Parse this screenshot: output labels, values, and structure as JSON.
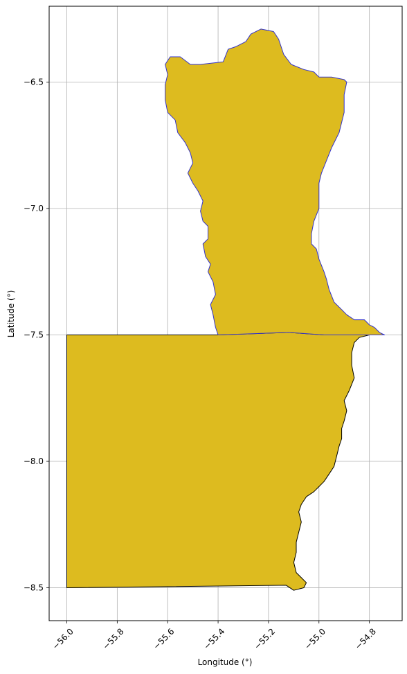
{
  "chart_data": {
    "type": "map",
    "xlabel": "Longitude (°)",
    "ylabel": "Latitude (°)",
    "xlim": [
      -56.07,
      -54.67
    ],
    "ylim": [
      -8.63,
      -6.2
    ],
    "x_ticks": [
      -56.0,
      -55.8,
      -55.6,
      -55.4,
      -55.2,
      -55.0,
      -54.8
    ],
    "x_tick_labels": [
      "−56.0",
      "−55.8",
      "−55.6",
      "−55.4",
      "−55.2",
      "−55.0",
      "−54.8"
    ],
    "y_ticks": [
      -6.5,
      -7.0,
      -7.5,
      -8.0,
      -8.5
    ],
    "y_tick_labels": [
      "−6.5",
      "−7.0",
      "−7.5",
      "−8.0",
      "−8.5"
    ],
    "grid": true,
    "fill_color": "#DDBB1F",
    "regions": [
      {
        "edge_color": "#3333cc",
        "coords": [
          [
            -55.27,
            -6.31
          ],
          [
            -55.23,
            -6.29
          ],
          [
            -55.18,
            -6.3
          ],
          [
            -55.16,
            -6.33
          ],
          [
            -55.14,
            -6.39
          ],
          [
            -55.11,
            -6.43
          ],
          [
            -55.06,
            -6.45
          ],
          [
            -55.02,
            -6.46
          ],
          [
            -55.0,
            -6.48
          ],
          [
            -54.95,
            -6.48
          ],
          [
            -54.9,
            -6.49
          ],
          [
            -54.89,
            -6.5
          ],
          [
            -54.9,
            -6.55
          ],
          [
            -54.9,
            -6.62
          ],
          [
            -54.92,
            -6.7
          ],
          [
            -54.95,
            -6.76
          ],
          [
            -54.97,
            -6.81
          ],
          [
            -54.99,
            -6.86
          ],
          [
            -55.0,
            -6.9
          ],
          [
            -55.0,
            -6.95
          ],
          [
            -55.0,
            -7.0
          ],
          [
            -55.02,
            -7.05
          ],
          [
            -55.03,
            -7.1
          ],
          [
            -55.03,
            -7.14
          ],
          [
            -55.01,
            -7.16
          ],
          [
            -55.0,
            -7.2
          ],
          [
            -54.98,
            -7.25
          ],
          [
            -54.97,
            -7.28
          ],
          [
            -54.96,
            -7.32
          ],
          [
            -54.94,
            -7.37
          ],
          [
            -54.91,
            -7.4
          ],
          [
            -54.89,
            -7.42
          ],
          [
            -54.86,
            -7.44
          ],
          [
            -54.82,
            -7.44
          ],
          [
            -54.8,
            -7.46
          ],
          [
            -54.78,
            -7.47
          ],
          [
            -54.76,
            -7.49
          ],
          [
            -54.74,
            -7.5
          ],
          [
            -54.8,
            -7.5
          ],
          [
            -54.98,
            -7.5
          ],
          [
            -55.12,
            -7.49
          ],
          [
            -55.4,
            -7.5
          ],
          [
            -55.41,
            -7.47
          ],
          [
            -55.42,
            -7.42
          ],
          [
            -55.43,
            -7.38
          ],
          [
            -55.41,
            -7.34
          ],
          [
            -55.42,
            -7.29
          ],
          [
            -55.44,
            -7.25
          ],
          [
            -55.43,
            -7.22
          ],
          [
            -55.45,
            -7.19
          ],
          [
            -55.46,
            -7.14
          ],
          [
            -55.44,
            -7.12
          ],
          [
            -55.44,
            -7.07
          ],
          [
            -55.46,
            -7.05
          ],
          [
            -55.47,
            -7.01
          ],
          [
            -55.46,
            -6.97
          ],
          [
            -55.48,
            -6.93
          ],
          [
            -55.5,
            -6.9
          ],
          [
            -55.52,
            -6.86
          ],
          [
            -55.5,
            -6.82
          ],
          [
            -55.51,
            -6.78
          ],
          [
            -55.53,
            -6.74
          ],
          [
            -55.56,
            -6.7
          ],
          [
            -55.57,
            -6.65
          ],
          [
            -55.6,
            -6.62
          ],
          [
            -55.61,
            -6.57
          ],
          [
            -55.61,
            -6.51
          ],
          [
            -55.6,
            -6.47
          ],
          [
            -55.61,
            -6.43
          ],
          [
            -55.59,
            -6.4
          ],
          [
            -55.55,
            -6.4
          ],
          [
            -55.51,
            -6.43
          ],
          [
            -55.47,
            -6.43
          ],
          [
            -55.38,
            -6.42
          ],
          [
            -55.36,
            -6.37
          ],
          [
            -55.33,
            -6.36
          ],
          [
            -55.29,
            -6.34
          ],
          [
            -55.27,
            -6.31
          ]
        ]
      },
      {
        "edge_color": "#000000",
        "coords": [
          [
            -56.0,
            -7.5
          ],
          [
            -55.4,
            -7.5
          ],
          [
            -55.12,
            -7.49
          ],
          [
            -54.98,
            -7.5
          ],
          [
            -54.8,
            -7.5
          ],
          [
            -54.84,
            -7.51
          ],
          [
            -54.86,
            -7.53
          ],
          [
            -54.87,
            -7.57
          ],
          [
            -54.87,
            -7.62
          ],
          [
            -54.86,
            -7.67
          ],
          [
            -54.88,
            -7.72
          ],
          [
            -54.9,
            -7.76
          ],
          [
            -54.89,
            -7.8
          ],
          [
            -54.9,
            -7.84
          ],
          [
            -54.91,
            -7.87
          ],
          [
            -54.91,
            -7.91
          ],
          [
            -54.92,
            -7.94
          ],
          [
            -54.93,
            -7.98
          ],
          [
            -54.94,
            -8.02
          ],
          [
            -54.96,
            -8.05
          ],
          [
            -54.98,
            -8.08
          ],
          [
            -55.0,
            -8.1
          ],
          [
            -55.02,
            -8.12
          ],
          [
            -55.05,
            -8.14
          ],
          [
            -55.07,
            -8.17
          ],
          [
            -55.08,
            -8.2
          ],
          [
            -55.07,
            -8.24
          ],
          [
            -55.08,
            -8.28
          ],
          [
            -55.09,
            -8.32
          ],
          [
            -55.09,
            -8.36
          ],
          [
            -55.1,
            -8.4
          ],
          [
            -55.09,
            -8.44
          ],
          [
            -55.07,
            -8.46
          ],
          [
            -55.05,
            -8.48
          ],
          [
            -55.06,
            -8.5
          ],
          [
            -55.1,
            -8.51
          ],
          [
            -55.13,
            -8.49
          ],
          [
            -56.0,
            -8.5
          ],
          [
            -56.0,
            -7.5
          ]
        ]
      }
    ]
  }
}
